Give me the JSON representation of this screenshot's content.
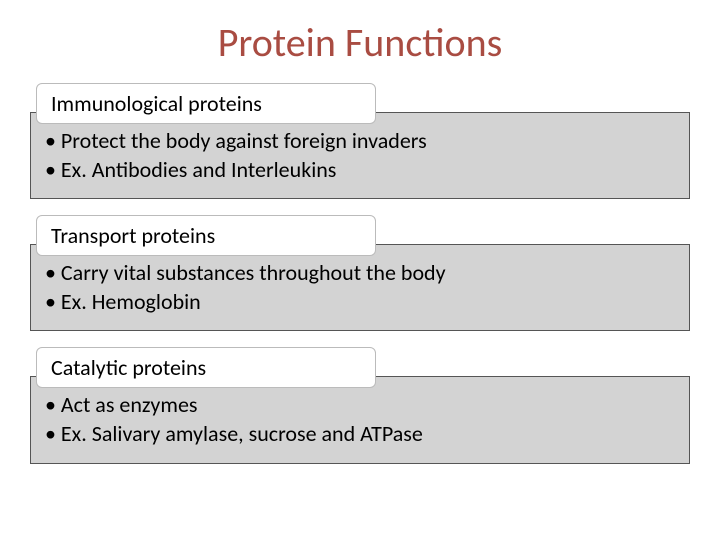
{
  "title": "Protein Functions",
  "title_color": "#a94c42",
  "background_color": "#ffffff",
  "body_bg_color": "#d3d3d3",
  "body_border_color": "#555555",
  "header_border_color": "#bbbbbb",
  "title_fontsize": 40,
  "header_fontsize": 22,
  "body_fontsize": 22,
  "sections": [
    {
      "heading": "Immunological proteins",
      "lines": [
        "• Protect the body against foreign invaders",
        "• Ex. Antibodies and Interleukins"
      ]
    },
    {
      "heading": "Transport proteins",
      "lines": [
        "• Carry vital substances throughout the body",
        "• Ex. Hemoglobin"
      ]
    },
    {
      "heading": "Catalytic proteins",
      "lines": [
        "• Act as enzymes",
        "• Ex. Salivary amylase, sucrose and ATPase"
      ]
    }
  ]
}
